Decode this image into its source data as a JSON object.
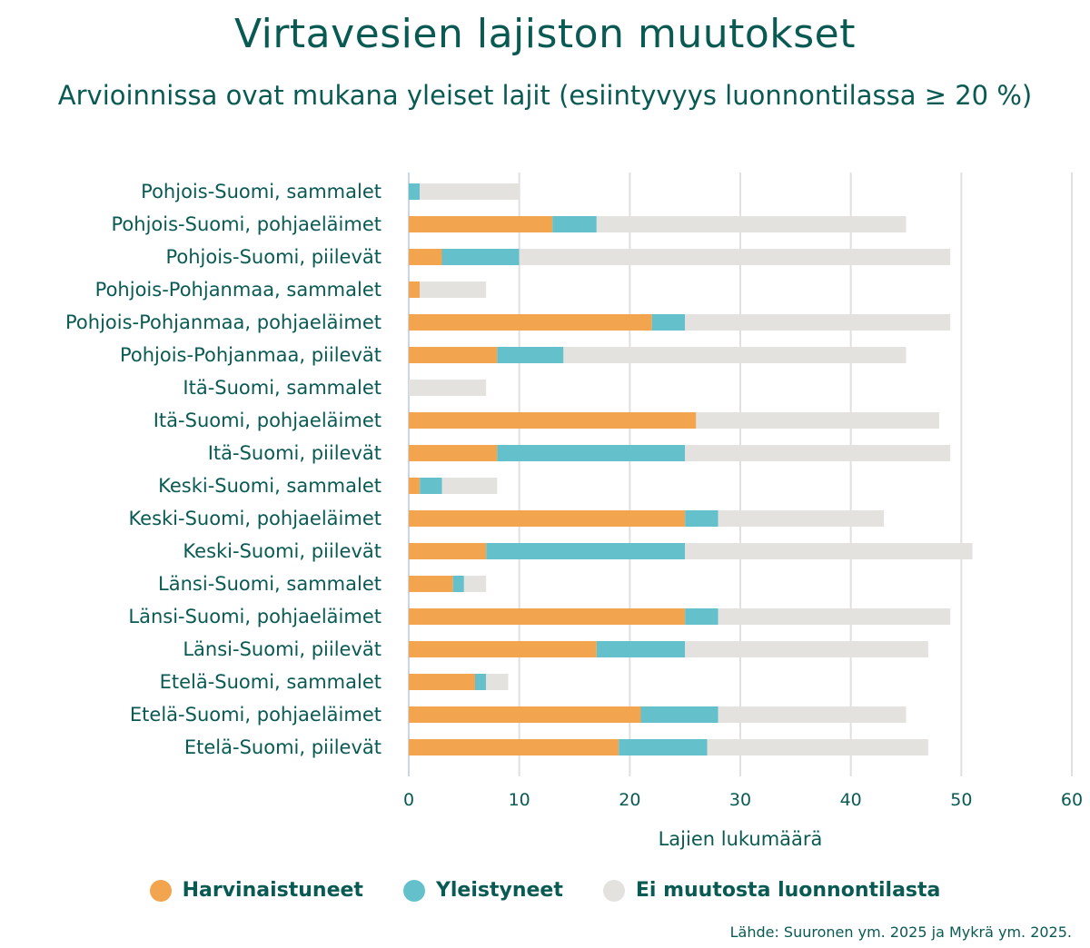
{
  "title": "Virtavesien lajiston muutokset",
  "subtitle": "Arvioinnissa ovat mukana yleiset lajit (esiintyvyys luonnontilassa ≥ 20 %)",
  "source": "Lähde: Suuronen ym. 2025 ja Mykrä ym. 2025.",
  "colors": {
    "text": "#0a5a54",
    "harvinaistuneet": "#f2a44e",
    "yleistyneet": "#64c0ca",
    "ei_muutosta": "#e3e2de",
    "grid": "#e0e0e0"
  },
  "legend": [
    {
      "label": "Harvinaistuneet",
      "color": "#f2a44e"
    },
    {
      "label": "Yleistyneet",
      "color": "#64c0ca"
    },
    {
      "label": "Ei muutosta luonnontilasta",
      "color": "#e3e2de"
    }
  ],
  "chart_data": {
    "type": "bar",
    "orientation": "horizontal",
    "stacked": true,
    "title": "Virtavesien lajiston muutokset",
    "subtitle": "Arvioinnissa ovat mukana yleiset lajit (esiintyvyys luonnontilassa ≥ 20 %)",
    "xlabel": "Lajien lukumäärä",
    "ylabel": "",
    "xlim": [
      0,
      60
    ],
    "xticks": [
      0,
      10,
      20,
      30,
      40,
      50,
      60
    ],
    "grid": true,
    "legend_position": "bottom",
    "categories": [
      "Pohjois-Suomi, sammalet",
      "Pohjois-Suomi, pohjaeläimet",
      "Pohjois-Suomi, piilevät",
      "Pohjois-Pohjanmaa, sammalet",
      "Pohjois-Pohjanmaa, pohjaeläimet",
      "Pohjois-Pohjanmaa, piilevät",
      "Itä-Suomi, sammalet",
      "Itä-Suomi, pohjaeläimet",
      "Itä-Suomi, piilevät",
      "Keski-Suomi, sammalet",
      "Keski-Suomi, pohjaeläimet",
      "Keski-Suomi, piilevät",
      "Länsi-Suomi, sammalet",
      "Länsi-Suomi, pohjaeläimet",
      "Länsi-Suomi, piilevät",
      "Etelä-Suomi, sammalet",
      "Etelä-Suomi, pohjaeläimet",
      "Etelä-Suomi, piilevät"
    ],
    "series": [
      {
        "name": "Harvinaistuneet",
        "color": "#f2a44e",
        "values": [
          0,
          13,
          3,
          1,
          22,
          8,
          0,
          26,
          8,
          1,
          25,
          7,
          4,
          25,
          17,
          6,
          21,
          19
        ]
      },
      {
        "name": "Yleistyneet",
        "color": "#64c0ca",
        "values": [
          1,
          4,
          7,
          0,
          3,
          6,
          0,
          0,
          17,
          2,
          3,
          18,
          1,
          3,
          8,
          1,
          7,
          8
        ]
      },
      {
        "name": "Ei muutosta luonnontilasta",
        "color": "#e3e2de",
        "values": [
          9,
          28,
          39,
          6,
          24,
          31,
          7,
          22,
          24,
          5,
          15,
          26,
          2,
          21,
          22,
          2,
          17,
          20
        ]
      }
    ]
  }
}
